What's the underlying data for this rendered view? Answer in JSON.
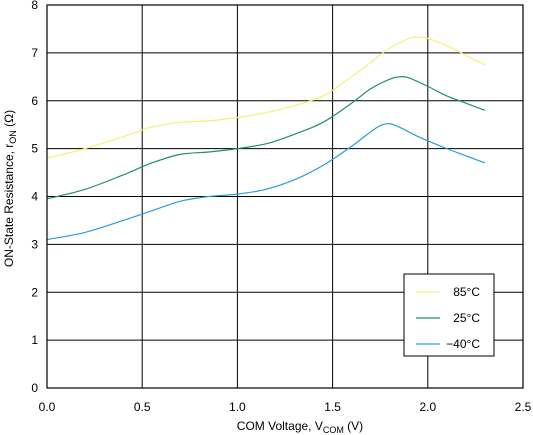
{
  "chart_data": {
    "type": "line",
    "xlabel": {
      "main": "COM Voltage, V",
      "sub": "COM",
      "tail": " (V)"
    },
    "ylabel": {
      "main": "ON-State Resistance, r",
      "sub": "ON",
      "tail": " (Ω)"
    },
    "xlim": [
      0,
      2.5
    ],
    "ylim": [
      0,
      8
    ],
    "xticks": [
      "0.0",
      "0.5",
      "1.0",
      "1.5",
      "2.0",
      "2.5"
    ],
    "yticks": [
      "0",
      "1",
      "2",
      "3",
      "4",
      "5",
      "6",
      "7",
      "8"
    ],
    "grid": true,
    "legend_position": "bottom-right",
    "series": [
      {
        "name": "85°C",
        "color": "#f5f07a",
        "x": [
          0.0,
          0.2,
          0.4,
          0.55,
          0.7,
          0.85,
          1.0,
          1.15,
          1.3,
          1.45,
          1.6,
          1.7,
          1.8,
          1.9,
          1.95,
          2.0,
          2.1,
          2.2,
          2.3
        ],
        "y": [
          4.8,
          5.0,
          5.25,
          5.45,
          5.55,
          5.58,
          5.65,
          5.75,
          5.9,
          6.1,
          6.5,
          6.8,
          7.1,
          7.3,
          7.33,
          7.3,
          7.15,
          6.95,
          6.75
        ]
      },
      {
        "name": "25°C",
        "color": "#1f8f6a",
        "x": [
          0.0,
          0.2,
          0.4,
          0.55,
          0.7,
          0.85,
          1.0,
          1.15,
          1.3,
          1.45,
          1.6,
          1.7,
          1.8,
          1.85,
          1.9,
          2.0,
          2.1,
          2.2,
          2.3
        ],
        "y": [
          3.95,
          4.15,
          4.45,
          4.7,
          4.88,
          4.93,
          5.0,
          5.1,
          5.3,
          5.55,
          5.95,
          6.25,
          6.45,
          6.5,
          6.48,
          6.3,
          6.1,
          5.95,
          5.8
        ]
      },
      {
        "name": "−40°C",
        "color": "#2a9fd8",
        "x": [
          0.0,
          0.2,
          0.4,
          0.55,
          0.7,
          0.85,
          1.0,
          1.15,
          1.3,
          1.45,
          1.6,
          1.7,
          1.75,
          1.8,
          1.85,
          1.95,
          2.1,
          2.2,
          2.3
        ],
        "y": [
          3.1,
          3.25,
          3.5,
          3.7,
          3.9,
          4.0,
          4.05,
          4.15,
          4.35,
          4.65,
          5.05,
          5.35,
          5.48,
          5.52,
          5.45,
          5.25,
          5.0,
          4.85,
          4.7
        ]
      }
    ]
  }
}
